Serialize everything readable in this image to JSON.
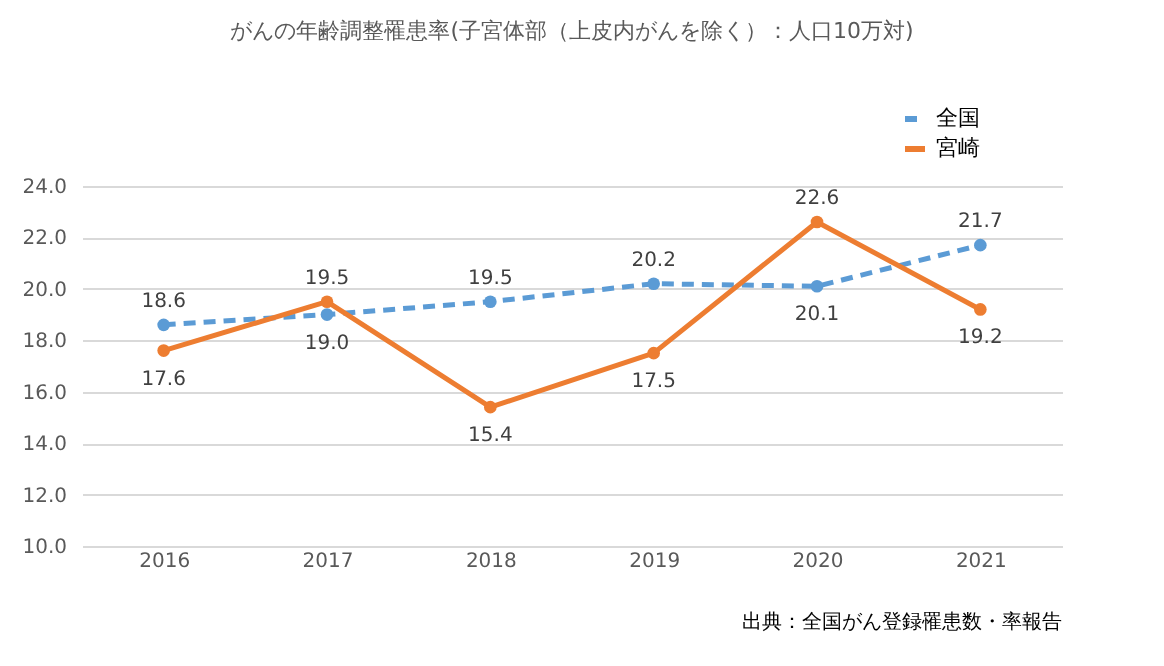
{
  "chart_data": {
    "type": "line",
    "title": "がんの年齢調整罹患率(子宮体部（上皮内がんを除く）：人口10万対)",
    "categories": [
      "2016",
      "2017",
      "2018",
      "2019",
      "2020",
      "2021"
    ],
    "series": [
      {
        "name": "全国",
        "color": "#5b9bd5",
        "line_style": "dashed",
        "values": [
          18.6,
          19.0,
          19.5,
          20.2,
          20.1,
          21.7
        ],
        "value_labels": [
          "18.6",
          "19.0",
          "19.5",
          "20.2",
          "20.1",
          "21.7"
        ]
      },
      {
        "name": "宮崎",
        "color": "#ed7d31",
        "line_style": "solid",
        "values": [
          17.6,
          19.5,
          15.4,
          17.5,
          22.6,
          19.2
        ],
        "value_labels": [
          "17.6",
          "19.5",
          "15.4",
          "17.5",
          "22.6",
          "19.2"
        ]
      }
    ],
    "ylim": [
      10,
      24
    ],
    "yticks": [
      {
        "value": 10,
        "label": "10.0"
      },
      {
        "value": 12,
        "label": "12.0"
      },
      {
        "value": 14,
        "label": "14.0"
      },
      {
        "value": 16,
        "label": "16.0"
      },
      {
        "value": 18,
        "label": "18.0"
      },
      {
        "value": 20,
        "label": "20.0"
      },
      {
        "value": 22,
        "label": "22.0"
      },
      {
        "value": 24,
        "label": "24.0"
      }
    ],
    "grid": "y",
    "legend": "top right",
    "marker": "circle",
    "data_labels": true,
    "annotations": [
      "出典：全国がん登録罹患数・率報告"
    ]
  }
}
